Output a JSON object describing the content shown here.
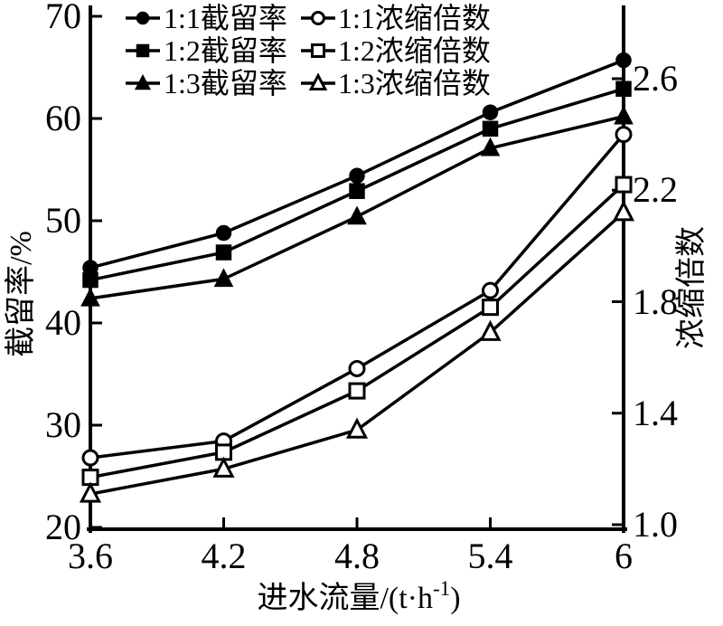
{
  "chart_data": {
    "type": "line",
    "title": "",
    "x": [
      3.6,
      4.2,
      4.8,
      5.4,
      6
    ],
    "x_tick_labels": [
      "3.6",
      "4.2",
      "4.8",
      "5.4",
      "6"
    ],
    "x_axis_label": "进水流量/(t·h⁻¹)",
    "x_axis_label_parts": {
      "prefix": "进水流量/(t·h",
      "superscript": "-1",
      "suffix": ")"
    },
    "left_axis": {
      "label": "截留率/%",
      "ticks": [
        70,
        60,
        50,
        40,
        30,
        20
      ],
      "tick_labels": [
        "70",
        "60",
        "50",
        "40",
        "30",
        "20"
      ],
      "range": [
        20,
        70
      ]
    },
    "right_axis": {
      "label": "浓缩倍数",
      "ticks": [
        2.6,
        2.2,
        1.8,
        1.4,
        1.0
      ],
      "tick_labels": [
        "2.6",
        "2.2",
        "1.8",
        "1.4",
        "1.0"
      ],
      "range": [
        1.0,
        2.83
      ]
    },
    "legend": {
      "position": "top-inside",
      "columns": 2
    },
    "series": [
      {
        "name": "1:1截留率",
        "axis": "left",
        "marker": "circle",
        "fill": "filled",
        "values": [
          45.4,
          48.8,
          54.4,
          60.6,
          65.7
        ]
      },
      {
        "name": "1:2截留率",
        "axis": "left",
        "marker": "square",
        "fill": "filled",
        "values": [
          44.2,
          46.9,
          52.9,
          59.0,
          62.9
        ]
      },
      {
        "name": "1:3截留率",
        "axis": "left",
        "marker": "triangle",
        "fill": "filled",
        "values": [
          42.4,
          44.3,
          50.4,
          57.1,
          60.2
        ]
      },
      {
        "name": "1:1浓缩倍数",
        "axis": "right",
        "marker": "circle",
        "fill": "open",
        "values": [
          1.24,
          1.3,
          1.56,
          1.84,
          2.4
        ]
      },
      {
        "name": "1:2浓缩倍数",
        "axis": "right",
        "marker": "square",
        "fill": "open",
        "values": [
          1.17,
          1.26,
          1.48,
          1.78,
          2.22
        ]
      },
      {
        "name": "1:3浓缩倍数",
        "axis": "right",
        "marker": "triangle",
        "fill": "open",
        "values": [
          1.11,
          1.2,
          1.34,
          1.69,
          2.12
        ]
      }
    ],
    "colors": {
      "line": "#000000",
      "background": "#ffffff"
    }
  }
}
